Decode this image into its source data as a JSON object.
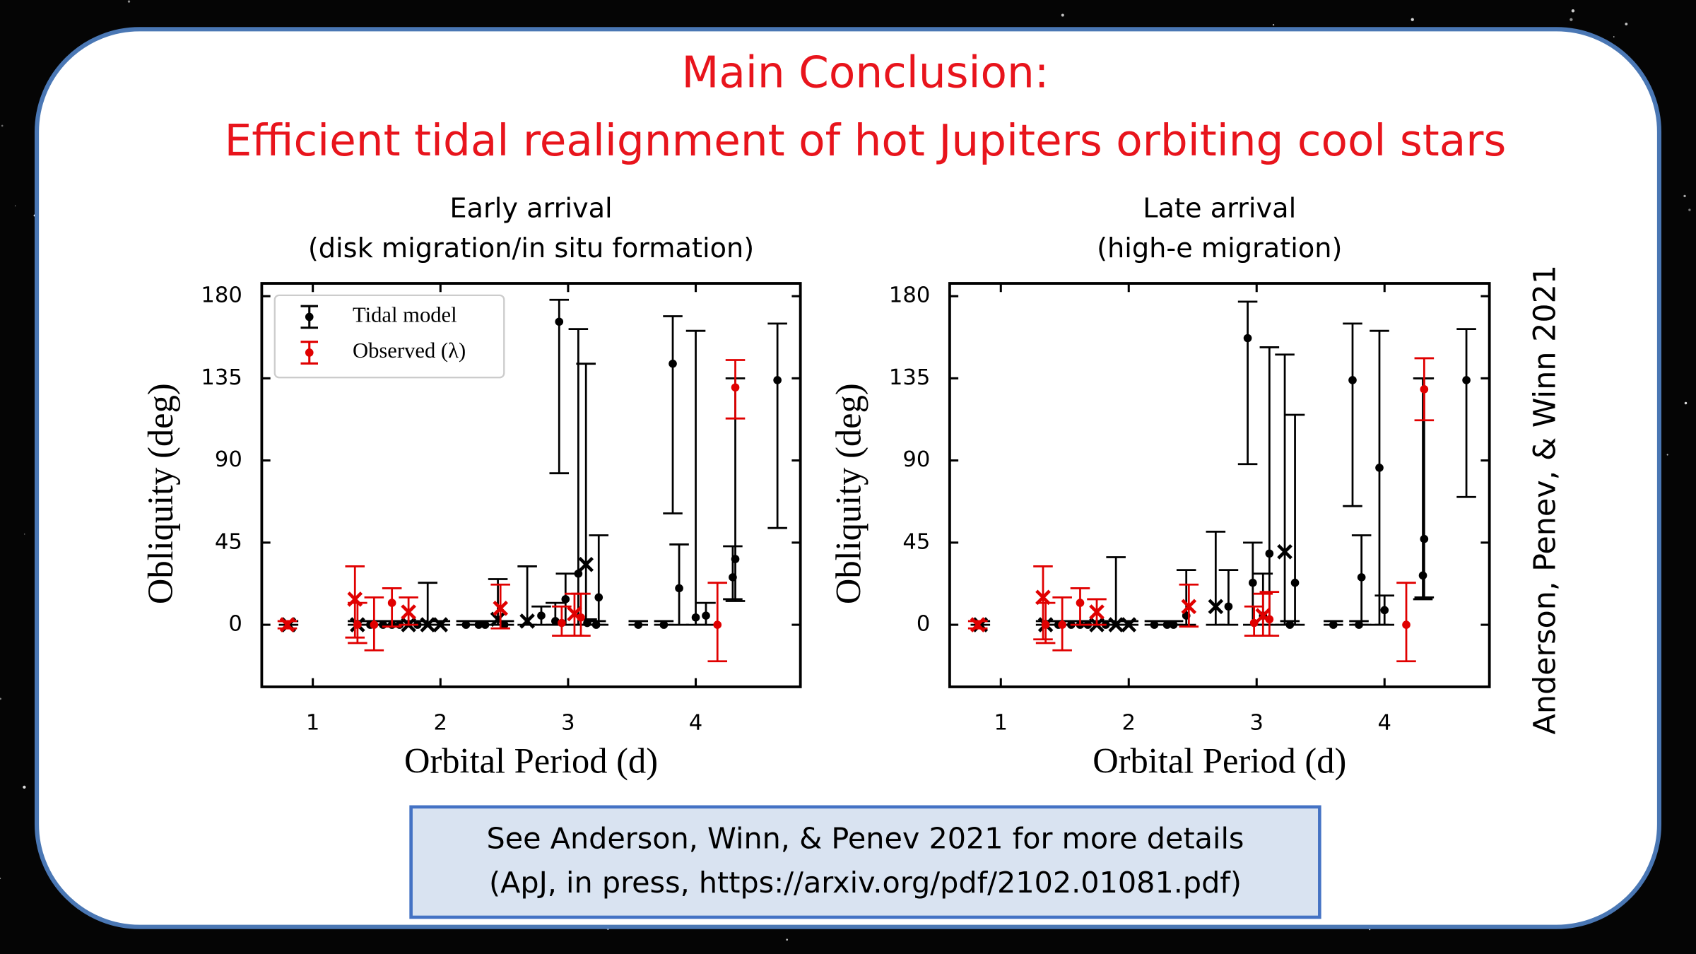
{
  "header": {
    "title": "Main Conclusion:",
    "subtitle": "Efficient tidal realignment of hot Jupiters orbiting cool stars"
  },
  "credit": "Anderson, Penev, & Winn 2021",
  "footer": {
    "lines": [
      "See Anderson, Winn, & Penev 2021 for more details",
      "(ApJ, in press, https://arxiv.org/pdf/2102.01081.pdf)"
    ]
  },
  "chart_data": [
    {
      "type": "scatter",
      "title": [
        "Early arrival",
        "(disk migration/in situ formation)"
      ],
      "xlabel": "Orbital Period (d)",
      "ylabel": "Obliquity (deg)",
      "xlim": [
        0.6,
        4.82
      ],
      "ylim": [
        -34,
        187
      ],
      "xticks": [
        1,
        2,
        3,
        4
      ],
      "yticks": [
        0,
        45,
        90,
        135,
        180
      ],
      "legend": "upper left",
      "series": [
        {
          "name": "Tidal model",
          "color": "#000000",
          "x": [
            0.81,
            1.35,
            1.45,
            1.55,
            1.62,
            1.68,
            1.75,
            1.82,
            1.9,
            2.0,
            2.2,
            2.3,
            2.35,
            2.45,
            2.5,
            2.68,
            2.79,
            2.9,
            2.93,
            2.98,
            3.08,
            3.14,
            3.15,
            3.22,
            3.24,
            3.55,
            3.75,
            3.82,
            3.87,
            4.0,
            4.08,
            4.29,
            4.31,
            4.64
          ],
          "values": [
            0,
            0,
            0,
            0,
            0,
            0,
            0,
            0,
            0,
            0,
            0,
            0,
            0,
            3,
            0,
            2,
            5,
            2,
            166,
            14,
            28,
            33,
            1,
            0,
            15,
            0,
            0,
            143,
            20,
            4,
            5,
            26,
            36,
            134
          ],
          "y_low": [
            0,
            0,
            0,
            0,
            0,
            0,
            0,
            0,
            0,
            0,
            0,
            0,
            0,
            0,
            0,
            0,
            0,
            0,
            83,
            0,
            0,
            0,
            0,
            0,
            0,
            0,
            0,
            61,
            0,
            0,
            0,
            14,
            13,
            53
          ],
          "y_high": [
            2,
            2,
            2,
            2,
            2,
            2,
            2,
            2,
            23,
            2,
            2,
            2,
            2,
            25,
            2,
            32,
            10,
            12,
            178,
            28,
            162,
            143,
            3,
            2,
            49,
            2,
            2,
            169,
            44,
            161,
            12,
            43,
            135,
            165
          ],
          "markers": [
            "x",
            "x",
            "o",
            "o",
            "o",
            "o",
            "x",
            "o",
            "x",
            "x",
            "o",
            "o",
            "o",
            "x",
            "o",
            "x",
            "o",
            "o",
            "o",
            "o",
            "o",
            "x",
            "o",
            "o",
            "o",
            "o",
            "o",
            "o",
            "o",
            "o",
            "o",
            "o",
            "o",
            "o"
          ]
        },
        {
          "name": "Observed (λ)",
          "color": "#e00000",
          "x": [
            0.8,
            1.33,
            1.35,
            1.48,
            1.62,
            1.75,
            2.47,
            2.95,
            3.05,
            3.1,
            4.17,
            4.31
          ],
          "values": [
            0,
            14,
            0,
            0,
            12,
            7,
            9,
            1,
            6,
            4,
            0,
            130
          ],
          "y_low": [
            -2,
            -7,
            -10,
            -14,
            -1,
            0,
            -2,
            -6,
            -6,
            -6,
            -20,
            113
          ],
          "y_high": [
            2,
            32,
            12,
            15,
            20,
            15,
            22,
            10,
            17,
            17,
            23,
            145
          ],
          "markers": [
            "x",
            "x",
            "o",
            "o",
            "o",
            "x",
            "x",
            "o",
            "x",
            "o",
            "o",
            "o"
          ]
        }
      ]
    },
    {
      "type": "scatter",
      "title": [
        "Late arrival",
        "(high-e migration)"
      ],
      "xlabel": "Orbital Period (d)",
      "ylabel": "Obliquity (deg)",
      "xlim": [
        0.6,
        4.82
      ],
      "ylim": [
        -34,
        187
      ],
      "xticks": [
        1,
        2,
        3,
        4
      ],
      "yticks": [
        0,
        45,
        90,
        135,
        180
      ],
      "series": [
        {
          "color": "#000000",
          "x": [
            0.84,
            1.35,
            1.45,
            1.55,
            1.62,
            1.68,
            1.75,
            1.82,
            1.9,
            2.0,
            2.2,
            2.3,
            2.35,
            2.45,
            2.68,
            2.78,
            2.93,
            2.97,
            3.05,
            3.1,
            3.22,
            3.26,
            3.3,
            3.6,
            3.75,
            3.8,
            3.82,
            3.96,
            4.0,
            4.3,
            4.31,
            4.64
          ],
          "values": [
            0,
            0,
            0,
            0,
            0,
            0,
            0,
            0,
            0,
            0,
            0,
            0,
            0,
            5,
            10,
            10,
            157,
            23,
            5,
            39,
            40,
            0,
            23,
            0,
            134,
            0,
            26,
            86,
            8,
            27,
            47,
            134
          ],
          "y_low": [
            0,
            0,
            0,
            0,
            0,
            0,
            0,
            0,
            0,
            0,
            0,
            0,
            0,
            0,
            0,
            0,
            88,
            0,
            0,
            0,
            0,
            0,
            0,
            0,
            65,
            0,
            0,
            0,
            0,
            14,
            15,
            70
          ],
          "y_high": [
            2,
            2,
            2,
            2,
            2,
            2,
            2,
            2,
            37,
            2,
            2,
            2,
            2,
            30,
            51,
            30,
            177,
            45,
            28,
            152,
            148,
            2,
            115,
            2,
            165,
            2,
            49,
            161,
            16,
            135,
            135,
            162
          ],
          "markers": [
            "x",
            "x",
            "o",
            "o",
            "o",
            "o",
            "x",
            "o",
            "x",
            "x",
            "o",
            "o",
            "o",
            "o",
            "x",
            "o",
            "o",
            "o",
            "o",
            "o",
            "x",
            "o",
            "o",
            "o",
            "o",
            "o",
            "o",
            "o",
            "o",
            "o",
            "o",
            "o"
          ]
        },
        {
          "color": "#e00000",
          "x": [
            0.82,
            1.33,
            1.35,
            1.48,
            1.62,
            1.75,
            2.47,
            2.98,
            3.05,
            3.1,
            4.17,
            4.31
          ],
          "values": [
            0,
            15,
            0,
            0,
            12,
            7,
            10,
            1,
            5,
            3,
            0,
            129
          ],
          "y_low": [
            -2,
            -8,
            -10,
            -14,
            0,
            0,
            -1,
            -6,
            -6,
            -6,
            -20,
            112
          ],
          "y_high": [
            2,
            32,
            12,
            15,
            20,
            14,
            22,
            10,
            17,
            18,
            23,
            146
          ],
          "markers": [
            "x",
            "x",
            "o",
            "o",
            "o",
            "x",
            "x",
            "o",
            "x",
            "o",
            "o",
            "o"
          ]
        }
      ]
    }
  ]
}
